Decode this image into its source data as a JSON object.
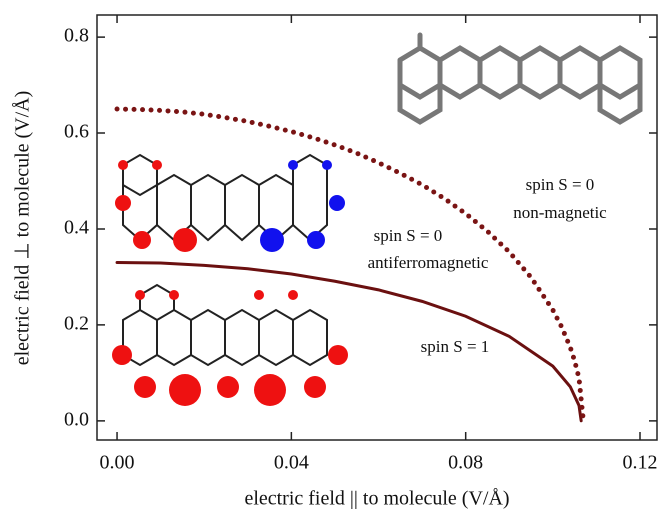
{
  "chart_data": {
    "type": "line",
    "xlabel": "electric field || to molecule (V/Å)",
    "ylabel": "electric field ⊥ to molecule (V/Å)",
    "xlim": [
      -0.0046,
      0.1239
    ],
    "ylim": [
      -0.04,
      0.846
    ],
    "xticks": [
      {
        "value": 0,
        "label": "0.00"
      },
      0.04,
      0.08,
      0.12
    ],
    "yticks": [
      {
        "value": 0,
        "label": "0.0"
      },
      0.2,
      0.4,
      0.6,
      0.8
    ],
    "series": [
      {
        "style": "solid",
        "color": "#6b1010",
        "x": [
          0,
          0.01,
          0.02,
          0.03,
          0.04,
          0.05,
          0.06,
          0.07,
          0.08,
          0.09,
          0.1,
          0.104,
          0.106,
          0.1065
        ],
        "values": [
          0.33,
          0.329,
          0.324,
          0.317,
          0.306,
          0.291,
          0.273,
          0.249,
          0.218,
          0.176,
          0.114,
          0.071,
          0.032,
          0
        ]
      },
      {
        "style": "dotted",
        "color": "#7a1414",
        "x": [
          0,
          0.005,
          0.01,
          0.015,
          0.02,
          0.025,
          0.03,
          0.035,
          0.04,
          0.045,
          0.05,
          0.055,
          0.06,
          0.065,
          0.07,
          0.075,
          0.08,
          0.085,
          0.09,
          0.095,
          0.1,
          0.102,
          0.104,
          0.105,
          0.106,
          0.107
        ],
        "values": [
          0.65,
          0.649,
          0.647,
          0.644,
          0.639,
          0.632,
          0.624,
          0.614,
          0.603,
          0.59,
          0.575,
          0.558,
          0.538,
          0.516,
          0.492,
          0.464,
          0.432,
          0.395,
          0.352,
          0.299,
          0.231,
          0.196,
          0.153,
          0.125,
          0.089,
          0
        ]
      }
    ],
    "annotations": [
      "spin S = 0",
      "non-magnetic",
      "spin S = 0",
      "antiferromagnetic",
      "spin S = 1"
    ]
  }
}
